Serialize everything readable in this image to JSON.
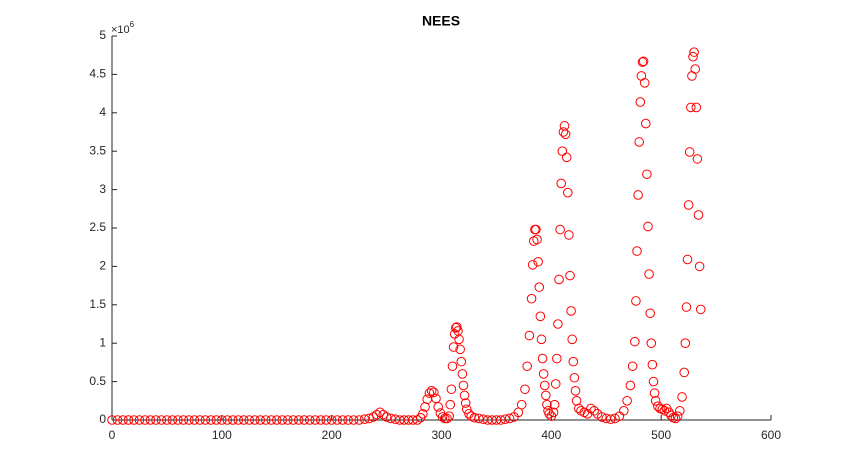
{
  "chart_data": {
    "type": "scatter",
    "title": "NEES",
    "y_multiplier": {
      "base": "×10",
      "power": "6"
    },
    "color": "#ff0000",
    "marker": "circle-open",
    "grid": false,
    "xlim": [
      0,
      600
    ],
    "xticks": [
      0,
      100,
      200,
      300,
      400,
      500,
      600
    ],
    "ylim": [
      0,
      5
    ],
    "yticks": [
      0,
      0.5,
      1,
      1.5,
      2,
      2.5,
      3,
      3.5,
      4,
      4.5,
      5
    ],
    "x": [
      0,
      5,
      10,
      15,
      20,
      25,
      30,
      35,
      40,
      45,
      50,
      55,
      60,
      65,
      70,
      75,
      80,
      85,
      90,
      95,
      100,
      105,
      110,
      115,
      120,
      125,
      130,
      135,
      140,
      145,
      150,
      155,
      160,
      165,
      170,
      175,
      180,
      185,
      190,
      195,
      200,
      205,
      210,
      215,
      220,
      225,
      230,
      234,
      238,
      241,
      244,
      247,
      250,
      254,
      258,
      262,
      266,
      270,
      274,
      278,
      281,
      283,
      285,
      287,
      289,
      291,
      293,
      295,
      297,
      299,
      301,
      303,
      305,
      307,
      308,
      309,
      310,
      311,
      312,
      313,
      314,
      315,
      316,
      317,
      318,
      319,
      320,
      321,
      322,
      323,
      325,
      327,
      330,
      334,
      338,
      342,
      346,
      350,
      354,
      358,
      362,
      366,
      370,
      373,
      376,
      378,
      380,
      382,
      383,
      384,
      385,
      386,
      387,
      388,
      389,
      390,
      391,
      392,
      393,
      394,
      395,
      396,
      397,
      398,
      400,
      402,
      403,
      404,
      405,
      406,
      407,
      408,
      409,
      410,
      411,
      412,
      413,
      414,
      415,
      416,
      417,
      418,
      419,
      420,
      421,
      422,
      423,
      425,
      427,
      430,
      433,
      436,
      439,
      442,
      446,
      450,
      454,
      458,
      462,
      466,
      469,
      472,
      474,
      476,
      477,
      478,
      479,
      480,
      481,
      482,
      483,
      484,
      485,
      486,
      487,
      488,
      489,
      490,
      491,
      492,
      493,
      494,
      495,
      497,
      499,
      501,
      503,
      505,
      507,
      509,
      511,
      513,
      515,
      517,
      519,
      521,
      522,
      523,
      524,
      525,
      526,
      527,
      528,
      529,
      530,
      531,
      532,
      533,
      534,
      535,
      536
    ],
    "values": [
      0,
      0,
      0,
      0,
      0,
      0,
      0,
      0,
      0,
      0,
      0,
      0,
      0,
      0,
      0,
      0,
      0,
      0,
      0,
      0,
      0,
      0,
      0,
      0,
      0,
      0,
      0,
      0,
      0,
      0,
      0,
      0,
      0,
      0,
      0,
      0,
      0,
      0,
      0,
      0,
      0,
      0,
      0,
      0,
      0,
      0,
      0.01,
      0.02,
      0.04,
      0.07,
      0.1,
      0.07,
      0.04,
      0.02,
      0.01,
      0,
      0,
      0,
      0,
      0,
      0.03,
      0.08,
      0.17,
      0.27,
      0.35,
      0.38,
      0.36,
      0.28,
      0.17,
      0.09,
      0.04,
      0.02,
      0.02,
      0.05,
      0.2,
      0.4,
      0.7,
      0.95,
      1.12,
      1.2,
      1.21,
      1.16,
      1.05,
      0.92,
      0.76,
      0.6,
      0.45,
      0.32,
      0.22,
      0.14,
      0.08,
      0.05,
      0.03,
      0.02,
      0.01,
      0,
      0,
      0,
      0,
      0.01,
      0.02,
      0.04,
      0.1,
      0.2,
      0.4,
      0.7,
      1.1,
      1.58,
      2.02,
      2.33,
      2.48,
      2.48,
      2.35,
      2.06,
      1.73,
      1.35,
      1.05,
      0.8,
      0.6,
      0.45,
      0.32,
      0.2,
      0.12,
      0.08,
      0.05,
      0.1,
      0.2,
      0.47,
      0.8,
      1.25,
      1.83,
      2.48,
      3.08,
      3.5,
      3.75,
      3.83,
      3.72,
      3.42,
      2.96,
      2.41,
      1.88,
      1.42,
      1.05,
      0.76,
      0.55,
      0.38,
      0.25,
      0.15,
      0.12,
      0.1,
      0.08,
      0.15,
      0.12,
      0.08,
      0.04,
      0.02,
      0.01,
      0.02,
      0.05,
      0.12,
      0.25,
      0.45,
      0.7,
      1.02,
      1.55,
      2.2,
      2.93,
      3.62,
      4.14,
      4.48,
      4.66,
      4.67,
      4.39,
      3.86,
      3.2,
      2.52,
      1.9,
      1.39,
      1.0,
      0.72,
      0.5,
      0.35,
      0.25,
      0.18,
      0.15,
      0.14,
      0.12,
      0.15,
      0.1,
      0.06,
      0.03,
      0.02,
      0.05,
      0.12,
      0.3,
      0.62,
      1.0,
      1.47,
      2.09,
      2.8,
      3.49,
      4.07,
      4.48,
      4.73,
      4.79,
      4.57,
      4.07,
      3.4,
      2.67,
      2.0,
      1.44
    ]
  }
}
